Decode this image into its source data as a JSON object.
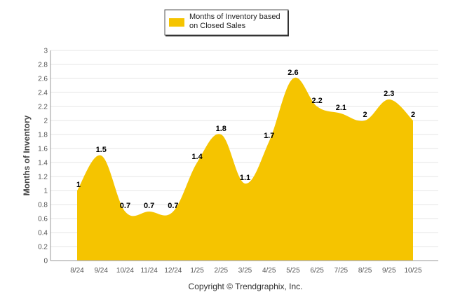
{
  "chart_data": {
    "type": "area",
    "categories": [
      "8/24",
      "9/24",
      "10/24",
      "11/24",
      "12/24",
      "1/25",
      "2/25",
      "3/25",
      "4/25",
      "5/25",
      "6/25",
      "7/25",
      "8/25",
      "9/25",
      "10/25"
    ],
    "series": [
      {
        "name": "Months of Inventory based on Closed Sales",
        "values": [
          1,
          1.5,
          0.7,
          0.7,
          0.7,
          1.4,
          1.8,
          1.1,
          1.7,
          2.6,
          2.2,
          2.1,
          2,
          2.3,
          2
        ],
        "color": "#F5C400"
      }
    ],
    "legend_lines": [
      "Months of Inventory based",
      "on Closed Sales"
    ],
    "ylabel": "Months of Inventory",
    "xlabel": "",
    "ylim": [
      0,
      3
    ],
    "yticks": [
      "0",
      "0.2",
      "0.4",
      "0.6",
      "0.8",
      "1",
      "1.2",
      "1.4",
      "1.6",
      "1.8",
      "2",
      "2.2",
      "2.4",
      "2.6",
      "2.8",
      "3"
    ],
    "grid": true,
    "legend_position": "top-center",
    "footer": "Copyright © Trendgraphix, Inc."
  }
}
